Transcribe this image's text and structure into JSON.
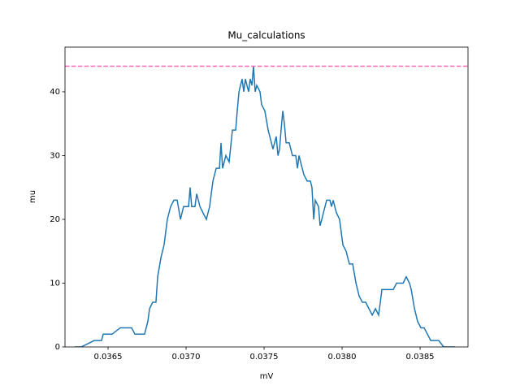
{
  "chart_data": {
    "type": "line",
    "title": "Mu_calculations",
    "xlabel": "mV",
    "ylabel": "mu",
    "x": [
      0.036287,
      0.036328,
      0.036411,
      0.036458,
      0.036469,
      0.036526,
      0.036578,
      0.036651,
      0.036672,
      0.036734,
      0.036755,
      0.036766,
      0.036786,
      0.036807,
      0.036818,
      0.036839,
      0.036859,
      0.03688,
      0.036901,
      0.036922,
      0.036943,
      0.036964,
      0.036974,
      0.036984,
      0.037016,
      0.037026,
      0.037036,
      0.037057,
      0.037068,
      0.037089,
      0.037109,
      0.03713,
      0.037151,
      0.037172,
      0.037193,
      0.037214,
      0.037224,
      0.037234,
      0.037255,
      0.037276,
      0.037297,
      0.037318,
      0.037328,
      0.037339,
      0.037359,
      0.03737,
      0.03738,
      0.037401,
      0.037411,
      0.037422,
      0.037432,
      0.037443,
      0.037453,
      0.037474,
      0.037484,
      0.037505,
      0.037526,
      0.037547,
      0.037557,
      0.037578,
      0.037589,
      0.037599,
      0.037609,
      0.03762,
      0.03763,
      0.037641,
      0.037661,
      0.037682,
      0.037703,
      0.037714,
      0.037724,
      0.037734,
      0.037755,
      0.037776,
      0.037797,
      0.037807,
      0.037818,
      0.037828,
      0.037849,
      0.037859,
      0.03787,
      0.03788,
      0.037901,
      0.037922,
      0.037932,
      0.037943,
      0.037953,
      0.037964,
      0.037984,
      0.038005,
      0.038026,
      0.038036,
      0.038047,
      0.038068,
      0.038089,
      0.038109,
      0.03813,
      0.038151,
      0.038172,
      0.038193,
      0.038214,
      0.038234,
      0.038245,
      0.038255,
      0.038286,
      0.038328,
      0.038349,
      0.038391,
      0.038411,
      0.038432,
      0.038443,
      0.038464,
      0.038484,
      0.038505,
      0.038526,
      0.038547,
      0.038568,
      0.03862,
      0.038651,
      0.038724
    ],
    "series": [
      {
        "name": "mu",
        "color": "#1f77b4",
        "values": [
          0,
          0,
          1,
          1,
          2,
          2,
          3,
          3,
          2,
          2,
          4,
          6,
          7,
          7,
          11,
          14,
          16,
          20,
          22,
          23,
          23,
          20,
          21,
          22,
          22,
          25,
          22,
          22,
          24,
          22,
          21,
          20,
          22,
          26,
          28,
          28,
          32,
          28,
          30,
          29,
          34,
          34,
          37,
          40,
          42,
          40,
          42,
          40,
          42,
          41,
          44,
          40,
          41,
          40,
          38,
          37,
          34,
          32,
          31,
          33,
          30,
          31,
          34,
          37,
          35,
          32,
          32,
          30,
          30,
          28,
          30,
          29,
          27,
          26,
          26,
          25,
          20,
          23,
          22,
          19,
          20,
          21,
          23,
          23,
          22,
          23,
          22,
          21,
          20,
          16,
          15,
          14,
          13,
          13,
          10,
          8,
          7,
          7,
          6,
          5,
          6,
          5,
          7,
          9,
          9,
          9,
          10,
          10,
          11,
          10,
          9,
          6,
          4,
          3,
          3,
          2,
          1,
          1,
          0,
          0
        ]
      }
    ],
    "hlines": [
      {
        "value": 44,
        "color": "#ff69b4",
        "style": "dashed"
      }
    ],
    "xlim": [
      0.036224,
      0.038807
    ],
    "ylim": [
      0,
      47
    ],
    "xticks": [
      0.0365,
      {
        "value": 0.037,
        "label": "0.0370"
      },
      0.0375,
      {
        "value": 0.038,
        "label": "0.0380"
      },
      0.0385
    ],
    "yticks": [
      0,
      10,
      20,
      30,
      40
    ]
  }
}
